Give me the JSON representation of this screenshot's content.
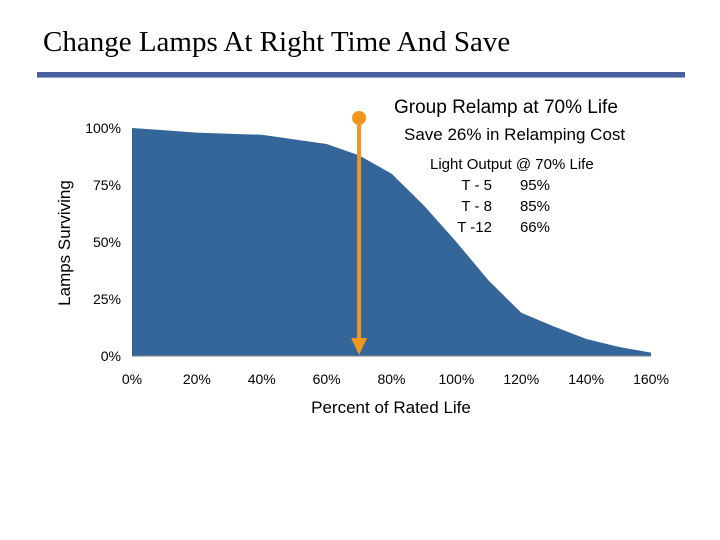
{
  "slide": {
    "title": "Change Lamps At Right Time And Save"
  },
  "annotations": {
    "headline": "Group Relamp at 70% Life",
    "savings": "Save 26% in Relamping Cost",
    "output_header": "Light Output @ 70% Life",
    "output_rows": [
      {
        "lamp": "T - 5",
        "value": "95%"
      },
      {
        "lamp": "T - 8",
        "value": "85%"
      },
      {
        "lamp": "T -12",
        "value": "66%"
      }
    ],
    "marker_color": "#f0961e"
  },
  "chart_data": {
    "type": "area",
    "xlabel": "Percent of Rated Life",
    "ylabel": "Lamps Surviving",
    "xlim": [
      0,
      160
    ],
    "ylim": [
      0,
      100
    ],
    "x_ticks": [
      "0%",
      "20%",
      "40%",
      "60%",
      "80%",
      "100%",
      "120%",
      "140%",
      "160%"
    ],
    "y_ticks": [
      "0%",
      "25%",
      "50%",
      "75%",
      "100%"
    ],
    "x_tick_values": [
      0,
      20,
      40,
      60,
      80,
      100,
      120,
      140,
      160
    ],
    "y_tick_values": [
      0,
      25,
      50,
      75,
      100
    ],
    "x": [
      0,
      10,
      20,
      30,
      40,
      50,
      60,
      70,
      80,
      90,
      100,
      110,
      120,
      130,
      140,
      150,
      160
    ],
    "values": [
      100,
      99,
      98,
      97.5,
      97,
      95,
      93,
      88,
      80,
      66,
      50,
      33,
      19,
      13,
      7.5,
      4,
      1.5
    ],
    "fill_color": "#34669a",
    "marker_x": 70,
    "grid": false
  }
}
